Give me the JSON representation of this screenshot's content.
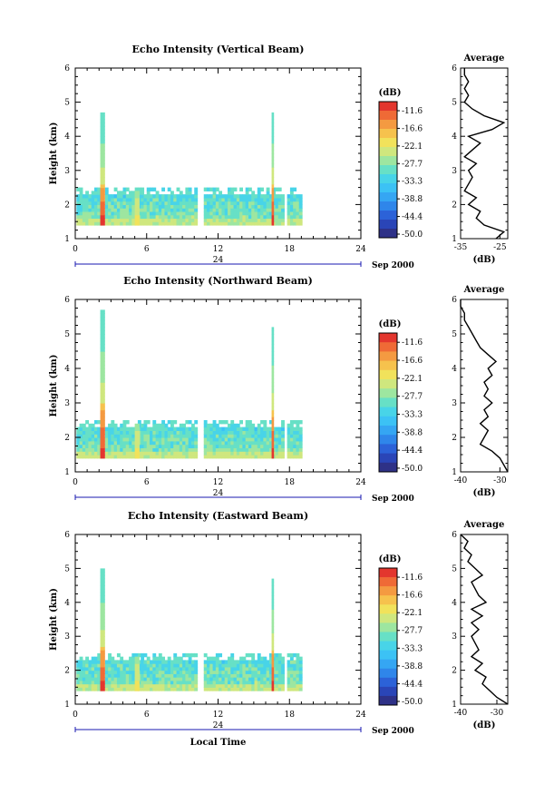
{
  "chart_data": [
    {
      "type": "heatmap",
      "title": "Echo Intensity (Vertical Beam)",
      "ylabel": "Height (km)",
      "xlim": [
        0,
        24
      ],
      "ylim": [
        1,
        6
      ],
      "x_ticks": [
        "0",
        "6",
        "12",
        "18",
        "24"
      ],
      "y_ticks": [
        "1",
        "2",
        "3",
        "4",
        "5",
        "6"
      ],
      "data_coverage": [
        {
          "x": [
            0.1,
            2.2
          ],
          "y": [
            1.4,
            2.5
          ]
        },
        {
          "x": [
            2.5,
            10.2
          ],
          "y": [
            1.4,
            2.5
          ]
        },
        {
          "x": [
            10.8,
            17.4
          ],
          "y": [
            1.4,
            2.5
          ]
        },
        {
          "x": [
            17.8,
            18.9
          ],
          "y": [
            1.4,
            2.5
          ]
        }
      ],
      "strong_echo": [
        {
          "x": [
            2.1,
            2.5
          ],
          "y": [
            1.4,
            4.7
          ],
          "level": -11.6
        },
        {
          "x": [
            5.0,
            5.4
          ],
          "y": [
            1.4,
            2.4
          ],
          "level": -22.1
        },
        {
          "x": [
            16.5,
            16.7
          ],
          "y": [
            1.4,
            4.7
          ],
          "level": -11.6
        }
      ],
      "colorbar": {
        "unit": "(dB)",
        "ticks": [
          "-11.6",
          "-16.6",
          "-22.1",
          "-27.7",
          "-33.3",
          "-38.8",
          "-44.4",
          "-50.0"
        ]
      },
      "date_label": "Sep 2000",
      "date_axis_ticks": [
        "24"
      ],
      "profile": {
        "title": "Average",
        "xlabel": "(dB)",
        "x_ticks": [
          "-35",
          "-25"
        ],
        "xlim": [
          -35,
          -23
        ],
        "height": [
          1.0,
          1.2,
          1.4,
          1.6,
          1.8,
          2.0,
          2.2,
          2.4,
          2.6,
          2.8,
          3.0,
          3.2,
          3.4,
          3.6,
          3.8,
          4.0,
          4.2,
          4.4,
          4.6,
          4.8,
          5.0,
          5.2,
          5.4,
          5.6,
          5.8,
          6.0
        ],
        "db": [
          -26,
          -24,
          -29,
          -31,
          -30,
          -33,
          -31,
          -34,
          -33,
          -32,
          -33,
          -31,
          -34,
          -32,
          -30,
          -33,
          -27,
          -24,
          -29,
          -32,
          -34,
          -33,
          -34,
          -33,
          -34,
          -34
        ]
      }
    },
    {
      "type": "heatmap",
      "title": "Echo Intensity (Northward Beam)",
      "ylabel": "Height (km)",
      "xlim": [
        0,
        24
      ],
      "ylim": [
        1,
        6
      ],
      "x_ticks": [
        "0",
        "6",
        "12",
        "18",
        "24"
      ],
      "y_ticks": [
        "1",
        "2",
        "3",
        "4",
        "5",
        "6"
      ],
      "data_coverage": [
        {
          "x": [
            0.1,
            2.2
          ],
          "y": [
            1.4,
            2.5
          ]
        },
        {
          "x": [
            2.5,
            10.2
          ],
          "y": [
            1.4,
            2.5
          ]
        },
        {
          "x": [
            10.8,
            17.4
          ],
          "y": [
            1.4,
            2.5
          ]
        },
        {
          "x": [
            17.8,
            18.9
          ],
          "y": [
            1.4,
            2.5
          ]
        }
      ],
      "strong_echo": [
        {
          "x": [
            2.1,
            2.5
          ],
          "y": [
            1.4,
            5.7
          ],
          "level": -11.6
        },
        {
          "x": [
            5.0,
            5.4
          ],
          "y": [
            1.4,
            2.4
          ],
          "level": -22.1
        },
        {
          "x": [
            16.5,
            16.7
          ],
          "y": [
            1.4,
            5.2
          ],
          "level": -11.6
        }
      ],
      "colorbar": {
        "unit": "(dB)",
        "ticks": [
          "-11.6",
          "-16.6",
          "-22.1",
          "-27.7",
          "-33.3",
          "-38.8",
          "-44.4",
          "-50.0"
        ]
      },
      "date_label": "Sep 2000",
      "date_axis_ticks": [
        "24"
      ],
      "profile": {
        "title": "Average",
        "xlabel": "(dB)",
        "x_ticks": [
          "-40",
          "-30"
        ],
        "xlim": [
          -40,
          -28
        ],
        "height": [
          1.0,
          1.2,
          1.4,
          1.6,
          1.8,
          2.0,
          2.2,
          2.4,
          2.6,
          2.8,
          3.0,
          3.2,
          3.4,
          3.6,
          3.8,
          4.0,
          4.2,
          4.4,
          4.6,
          4.8,
          5.0,
          5.2,
          5.4,
          5.6,
          5.8,
          6.0
        ],
        "db": [
          -28,
          -29,
          -30,
          -32,
          -35,
          -34,
          -33,
          -35,
          -33,
          -34,
          -32,
          -34,
          -33,
          -34,
          -32,
          -33,
          -31,
          -33,
          -35,
          -36,
          -37,
          -38,
          -39,
          -39,
          -40,
          -40
        ]
      }
    },
    {
      "type": "heatmap",
      "title": "Echo Intensity (Eastward Beam)",
      "ylabel": "Height (km)",
      "xlabel": "Local Time",
      "xlim": [
        0,
        24
      ],
      "ylim": [
        1,
        6
      ],
      "x_ticks": [
        "0",
        "6",
        "12",
        "18",
        "24"
      ],
      "y_ticks": [
        "1",
        "2",
        "3",
        "4",
        "5",
        "6"
      ],
      "data_coverage": [
        {
          "x": [
            0.1,
            2.2
          ],
          "y": [
            1.4,
            2.5
          ]
        },
        {
          "x": [
            2.5,
            10.2
          ],
          "y": [
            1.4,
            2.5
          ]
        },
        {
          "x": [
            10.8,
            17.4
          ],
          "y": [
            1.4,
            2.5
          ]
        },
        {
          "x": [
            17.8,
            18.9
          ],
          "y": [
            1.4,
            2.5
          ]
        }
      ],
      "strong_echo": [
        {
          "x": [
            2.1,
            2.5
          ],
          "y": [
            1.4,
            5.0
          ],
          "level": -11.6
        },
        {
          "x": [
            5.0,
            5.4
          ],
          "y": [
            1.4,
            2.4
          ],
          "level": -22.1
        },
        {
          "x": [
            16.5,
            16.7
          ],
          "y": [
            1.4,
            4.7
          ],
          "level": -11.6
        }
      ],
      "colorbar": {
        "unit": "(dB)",
        "ticks": [
          "-11.6",
          "-16.6",
          "-22.1",
          "-27.7",
          "-33.3",
          "-38.8",
          "-44.4",
          "-50.0"
        ]
      },
      "date_label": "Sep 2000",
      "date_axis_ticks": [
        "24"
      ],
      "profile": {
        "title": "Average",
        "xlabel": "(dB)",
        "x_ticks": [
          "-40",
          "-30"
        ],
        "xlim": [
          -40,
          -27
        ],
        "height": [
          1.0,
          1.2,
          1.4,
          1.6,
          1.8,
          2.0,
          2.2,
          2.4,
          2.6,
          2.8,
          3.0,
          3.2,
          3.4,
          3.6,
          3.8,
          4.0,
          4.2,
          4.4,
          4.6,
          4.8,
          5.0,
          5.2,
          5.4,
          5.6,
          5.8,
          6.0
        ],
        "db": [
          -27,
          -30,
          -32,
          -34,
          -33,
          -36,
          -34,
          -37,
          -35,
          -36,
          -37,
          -35,
          -37,
          -34,
          -37,
          -33,
          -35,
          -36,
          -37,
          -34,
          -36,
          -38,
          -37,
          -39,
          -38,
          -40
        ]
      }
    }
  ],
  "colors": {
    "scale": [
      "#2e3187",
      "#2a45b7",
      "#2c62d8",
      "#2f86ea",
      "#35a6f3",
      "#3cc2f5",
      "#48d4e8",
      "#67e0c6",
      "#9de6a0",
      "#cfe77e",
      "#f1e25b",
      "#f6c24d",
      "#f49a41",
      "#ef6a36",
      "#e3362e"
    ],
    "axis": "#000000",
    "date_axis": "#1a1ab0"
  }
}
